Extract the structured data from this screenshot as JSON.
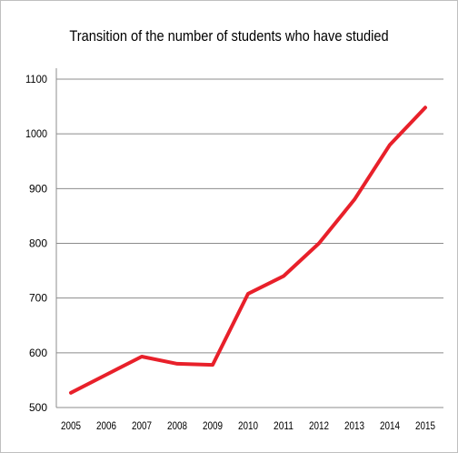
{
  "chart_data": {
    "type": "line",
    "title": "Transition of the number of students who have studied",
    "xlabel": "",
    "ylabel": "",
    "categories": [
      "2005",
      "2006",
      "2007",
      "2008",
      "2009",
      "2010",
      "2011",
      "2012",
      "2013",
      "2014",
      "2015"
    ],
    "series": [
      {
        "values": [
          527,
          560,
          593,
          580,
          578,
          708,
          740,
          800,
          880,
          980,
          1048
        ],
        "color": "#e8202a"
      }
    ],
    "ylim": [
      500,
      1100
    ],
    "yticks": [
      500,
      600,
      700,
      800,
      900,
      1000,
      1100
    ],
    "grid": true,
    "legend": "none"
  }
}
